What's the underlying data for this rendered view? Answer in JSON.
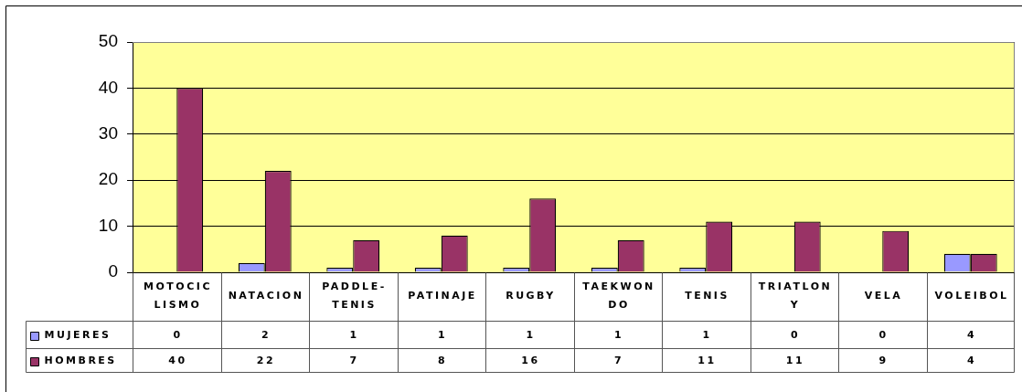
{
  "chart_data": {
    "type": "bar",
    "categories": [
      "MOTOCICLISMO",
      "NATACION",
      "PADDLE-TENIS",
      "PATINAJE",
      "RUGBY",
      "TAEKWONDO",
      "TENIS",
      "TRIATLONY",
      "VELA",
      "VOLEIBOL"
    ],
    "series": [
      {
        "name": "MUJERES",
        "color": "#9999ff",
        "values": [
          0,
          2,
          1,
          1,
          1,
          1,
          1,
          0,
          0,
          4
        ]
      },
      {
        "name": "HOMBRES",
        "color": "#993366",
        "values": [
          40,
          22,
          7,
          8,
          16,
          7,
          11,
          11,
          9,
          4
        ]
      }
    ],
    "ylim": [
      0,
      50
    ],
    "yticks": [
      0,
      10,
      20,
      30,
      40,
      50
    ],
    "grid": "y",
    "legend": "bottom left",
    "data_labels": true
  }
}
